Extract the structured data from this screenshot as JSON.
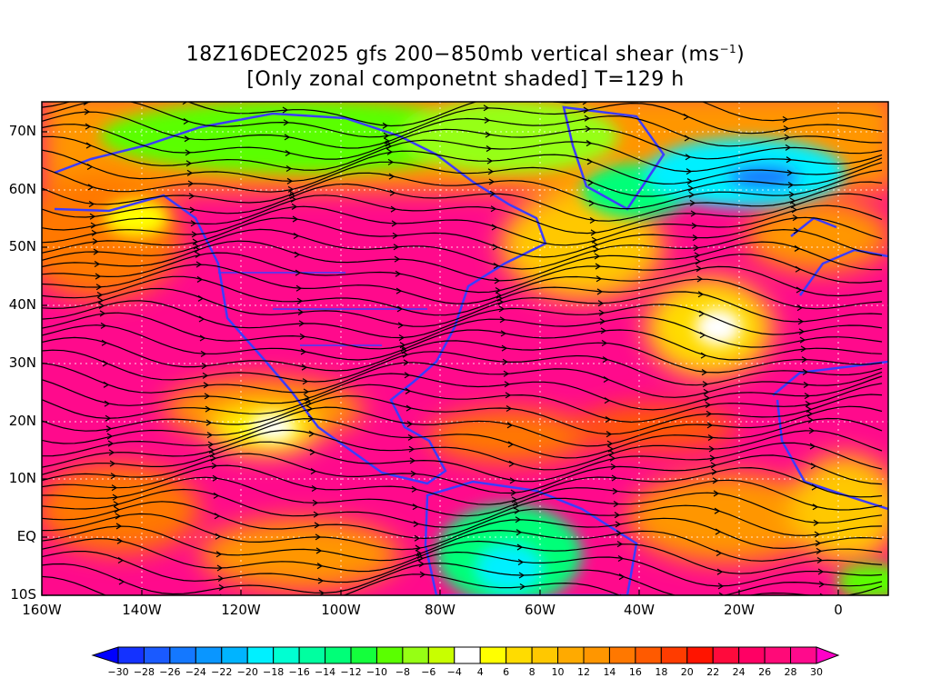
{
  "title": {
    "line1_main": "18Z16DEC2025 gfs 200−850mb vertical shear (ms",
    "line1_sup": "−1",
    "line1_end": ")",
    "line2": "[Only zonal componetnt shaded] T=129 h"
  },
  "axes": {
    "lat_labels": [
      "70N",
      "60N",
      "50N",
      "40N",
      "30N",
      "20N",
      "10N",
      "EQ",
      "10S"
    ],
    "lon_labels": [
      "160W",
      "140W",
      "120W",
      "100W",
      "80W",
      "60W",
      "40W",
      "20W",
      "0"
    ],
    "lon_range": [
      -160,
      10
    ],
    "lat_range": [
      -10,
      75
    ]
  },
  "colorbar": {
    "labels": [
      "−30",
      "−28",
      "−26",
      "−24",
      "−22",
      "−20",
      "−18",
      "−16",
      "−14",
      "−12",
      "−10",
      "−8",
      "−6",
      "−4",
      "4",
      "6",
      "8",
      "10",
      "12",
      "14",
      "16",
      "18",
      "20",
      "22",
      "24",
      "26",
      "28",
      "30"
    ],
    "low_arrow_color": "#0000ff",
    "high_arrow_color": "#ff00c8",
    "colors": [
      "#1432ff",
      "#1a5aff",
      "#1478ff",
      "#0a96ff",
      "#00b4ff",
      "#00f0ff",
      "#00ffd2",
      "#00ffa0",
      "#00ff78",
      "#14ff3c",
      "#5aff00",
      "#96ff14",
      "#c8ff00",
      "#ffffff",
      "#ffff00",
      "#ffdc00",
      "#ffc800",
      "#ffaa00",
      "#ff9600",
      "#ff7800",
      "#ff5a00",
      "#ff3c00",
      "#ff1400",
      "#ff0a3c",
      "#ff0064",
      "#ff0a78",
      "#ff0a8c"
    ]
  }
}
